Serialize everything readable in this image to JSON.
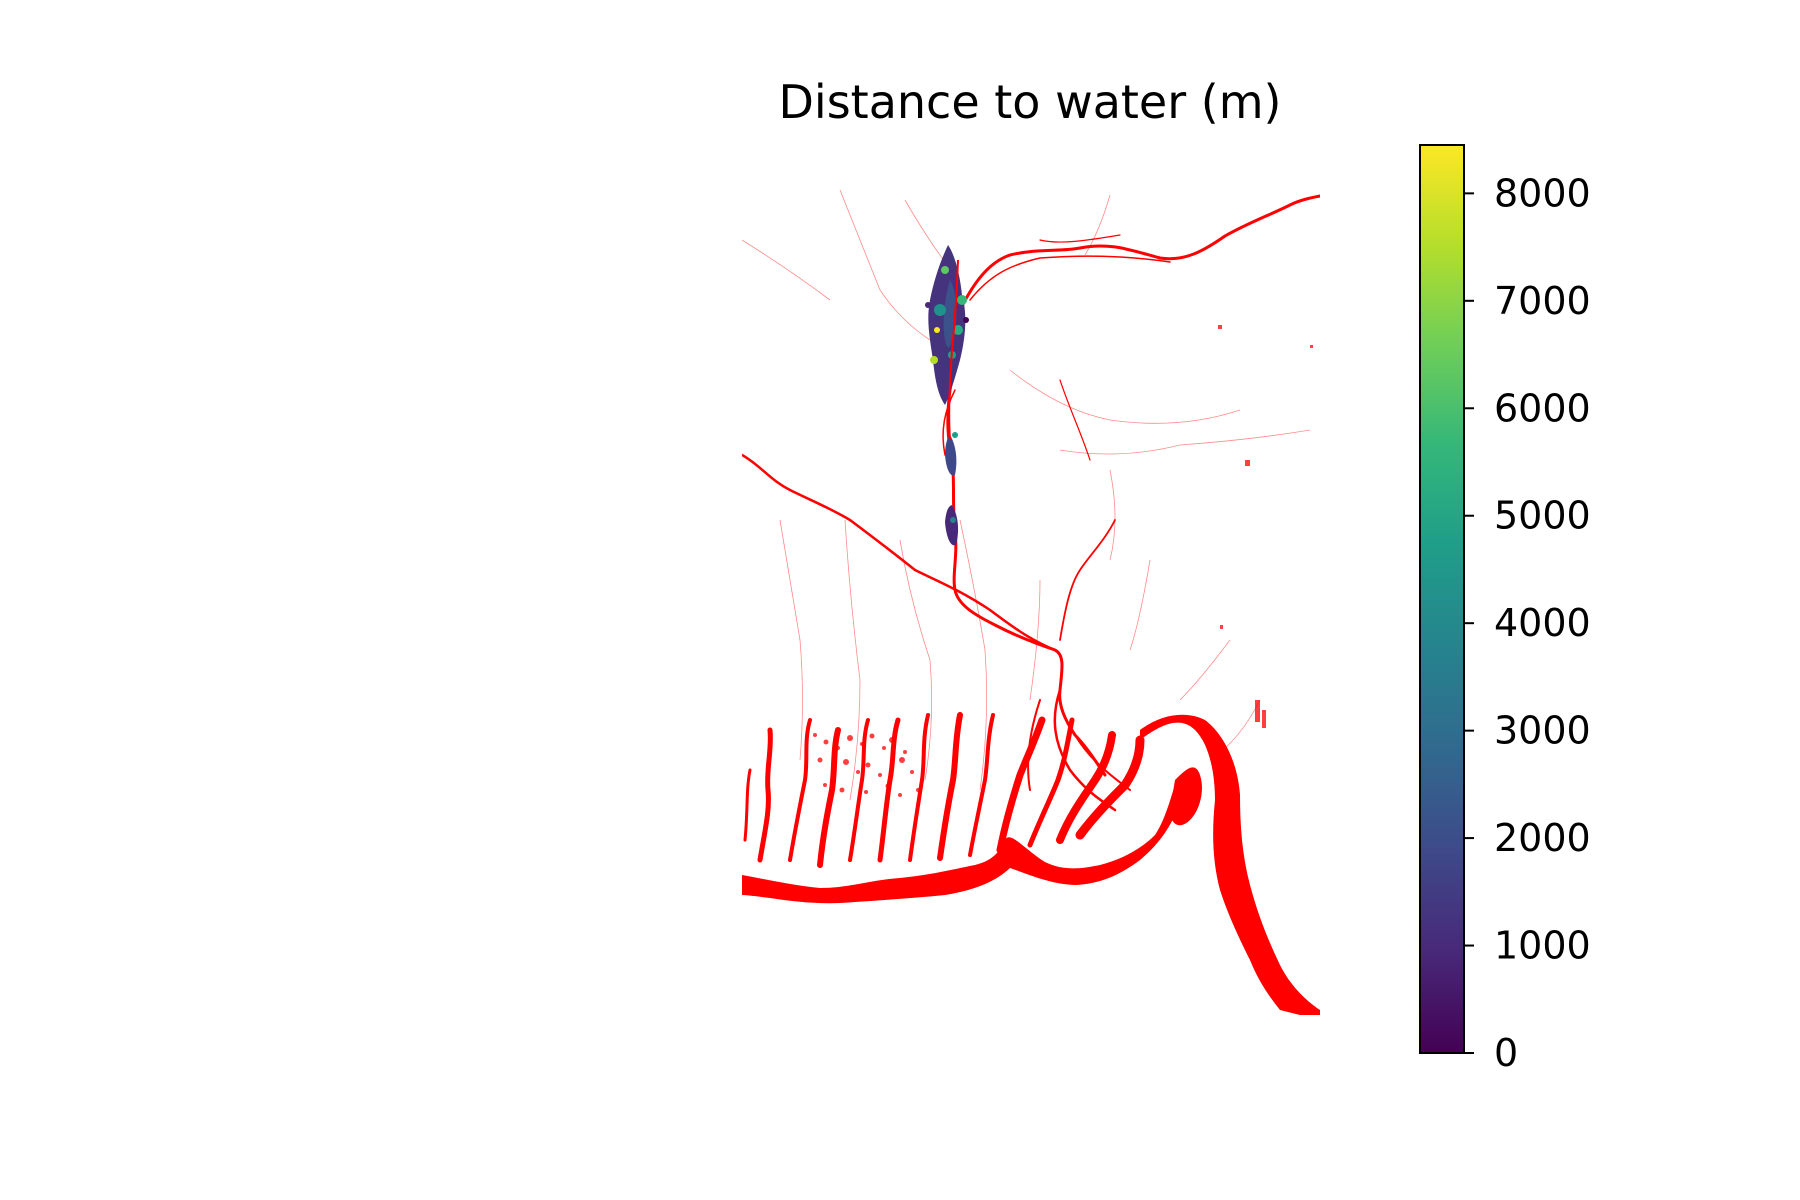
{
  "title": "Distance to water (m)",
  "water_color": "#ff0000",
  "colorbar": {
    "colormap": "viridis",
    "min": 0,
    "max": 8450,
    "ticks": [
      0,
      1000,
      2000,
      3000,
      4000,
      5000,
      6000,
      7000,
      8000
    ],
    "tick_labels": [
      "0",
      "1000",
      "2000",
      "3000",
      "4000",
      "5000",
      "6000",
      "7000",
      "8000"
    ],
    "colors": [
      "#440154",
      "#482878",
      "#3e4989",
      "#31688e",
      "#26828e",
      "#1f9e89",
      "#35b779",
      "#6ece58",
      "#b5de2b",
      "#fde725"
    ]
  },
  "layers": [
    "water bodies (red)",
    "distance to water (viridis)"
  ]
}
